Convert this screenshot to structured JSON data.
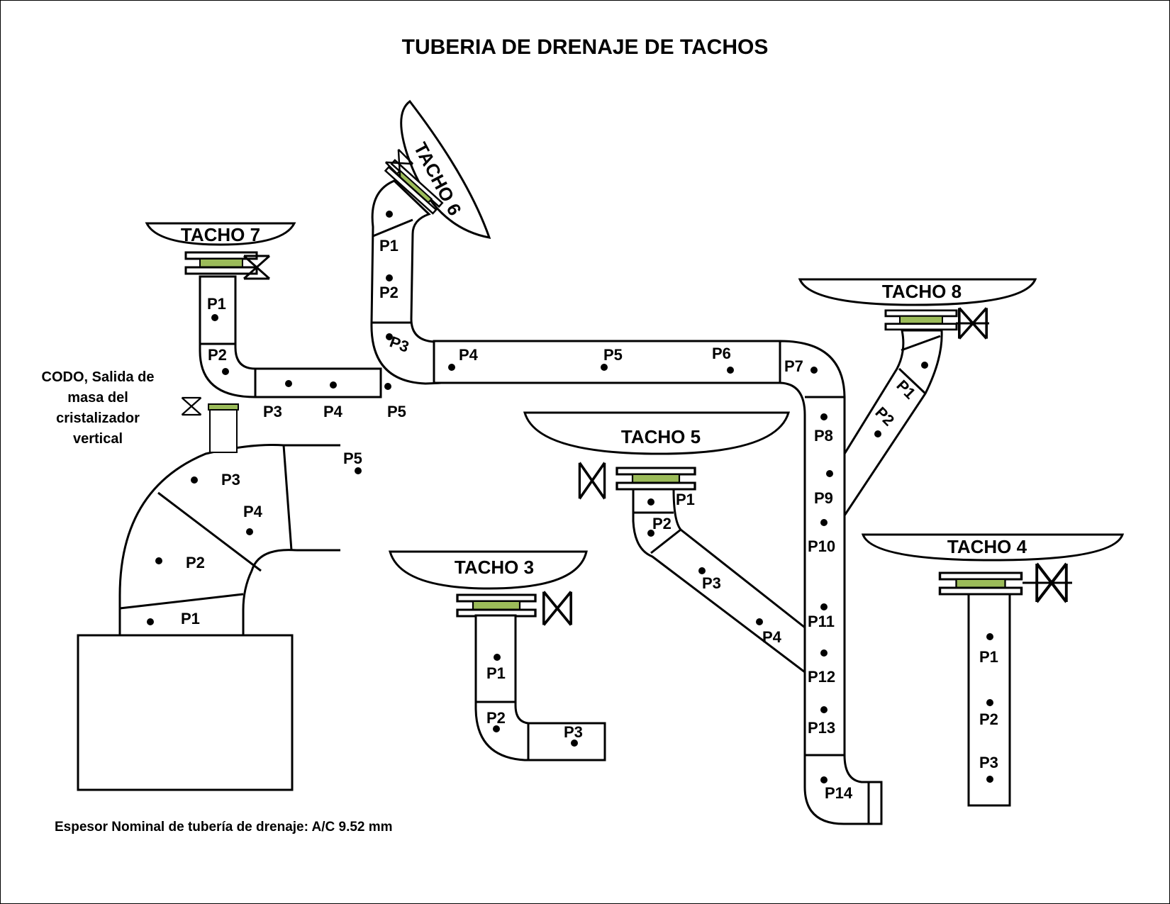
{
  "title": "TUBERIA DE DRENAJE DE TACHOS",
  "footnote": "Espesor Nominal de tubería de drenaje: A/C 9.52 mm",
  "codo_label": [
    "CODO, Salida de",
    "masa del",
    "cristalizador",
    "vertical"
  ],
  "colors": {
    "line": "#000000",
    "seal": "#9bbb59",
    "background": "#ffffff"
  },
  "icons": [
    "valve-icon",
    "flange-icon"
  ],
  "tachos": {
    "t3": "TACHO 3",
    "t4": "TACHO 4",
    "t5": "TACHO 5",
    "t6": "TACHO 6",
    "t7": "TACHO 7",
    "t8": "TACHO 8"
  },
  "points": {
    "t7": [
      "P1",
      "P2",
      "P3",
      "P4",
      "P5"
    ],
    "t6": [
      "P1",
      "P2",
      "P3",
      "P4",
      "P5",
      "P6",
      "P7",
      "P8",
      "P9",
      "P10",
      "P11",
      "P12",
      "P13",
      "P14"
    ],
    "codo": [
      "P1",
      "P2",
      "P3",
      "P4",
      "P5"
    ],
    "t3": [
      "P1",
      "P2",
      "P3"
    ],
    "t5": [
      "P1",
      "P2",
      "P3",
      "P4"
    ],
    "t8": [
      "P1",
      "P2"
    ],
    "t4": [
      "P1",
      "P2",
      "P3"
    ]
  }
}
